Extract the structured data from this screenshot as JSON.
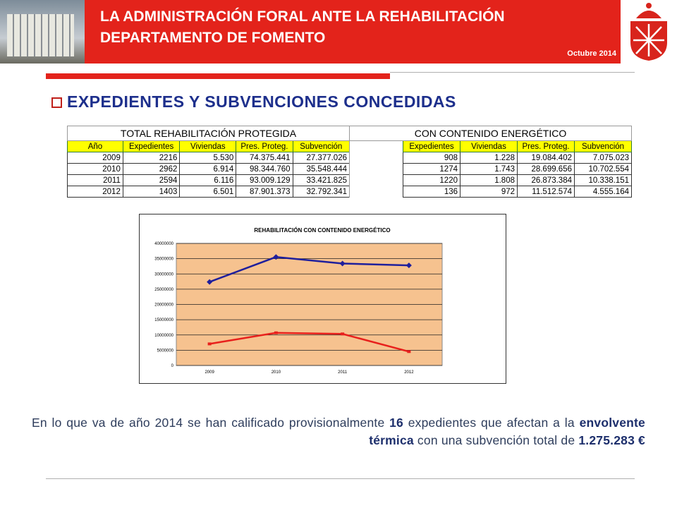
{
  "header": {
    "title": [
      "LA ADMINISTRACIÓN FORAL ANTE LA REHABILITACIÓN",
      "DEPARTAMENTO DE FOMENTO"
    ],
    "date": "Octubre 2014"
  },
  "heading": "EXPEDIENTES Y SUBVENCIONES CONCEDIDAS",
  "table1": {
    "title": "TOTAL REHABILITACIÓN PROTEGIDA",
    "columns": [
      "Año",
      "Expedientes",
      "Viviendas",
      "Pres. Proteg.",
      "Subvención"
    ],
    "rows": [
      [
        "2009",
        "2216",
        "5.530",
        "74.375.441",
        "27.377.026"
      ],
      [
        "2010",
        "2962",
        "6.914",
        "98.344.760",
        "35.548.444"
      ],
      [
        "2011",
        "2594",
        "6.116",
        "93.009.129",
        "33.421.825"
      ],
      [
        "2012",
        "1403",
        "6.501",
        "87.901.373",
        "32.792.341"
      ]
    ]
  },
  "table2": {
    "title": "CON CONTENIDO ENERGÉTICO",
    "columns": [
      "Expedientes",
      "Viviendas",
      "Pres. Proteg.",
      "Subvención"
    ],
    "rows": [
      [
        "908",
        "1.228",
        "19.084.402",
        "7.075.023"
      ],
      [
        "1274",
        "1.743",
        "28.699.656",
        "10.702.554"
      ],
      [
        "1220",
        "1.808",
        "26.873.384",
        "10.338.151"
      ],
      [
        "136",
        "972",
        "11.512.574",
        "4.555.164"
      ]
    ]
  },
  "chart_data": {
    "type": "line",
    "title": "REHABILITACIÓN CON CONTENIDO ENERGÉTICO",
    "categories": [
      "2009",
      "2010",
      "2011",
      "2012"
    ],
    "series": [
      {
        "color": "#1f1f9c",
        "values": [
          27377026,
          35548444,
          33421825,
          32792341
        ]
      },
      {
        "color": "#e8201c",
        "values": [
          7075023,
          10702554,
          10338151,
          4555164
        ]
      }
    ],
    "ylim": [
      0,
      40000000
    ],
    "yticks": [
      0,
      5000000,
      10000000,
      15000000,
      20000000,
      25000000,
      30000000,
      35000000,
      40000000
    ],
    "grid": true
  },
  "paragraph": [
    {
      "text": "En lo que va de año 2014 se han calificado provisionalmente ",
      "bold": false
    },
    {
      "text": "16",
      "bold": true
    },
    {
      "text": " expedientes que afectan a la ",
      "bold": false
    },
    {
      "text": "envolvente térmica",
      "bold": true
    },
    {
      "text": " con una subvención total de ",
      "bold": false
    },
    {
      "text": "1.275.283 €",
      "bold": true
    }
  ]
}
